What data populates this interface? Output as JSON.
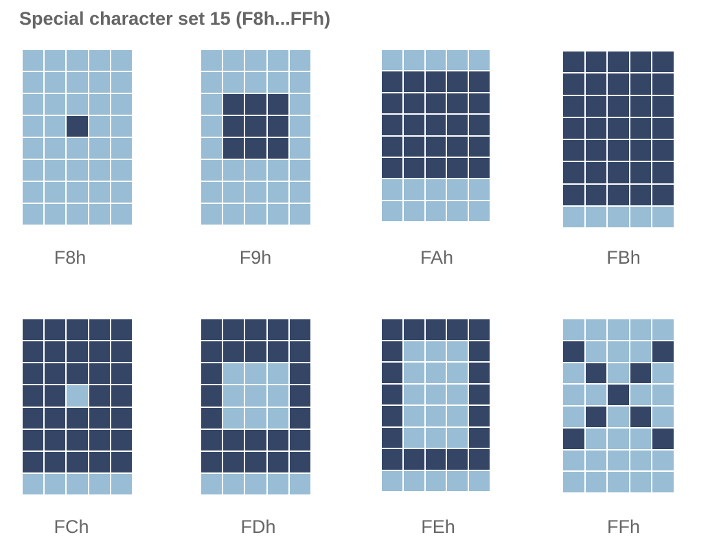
{
  "title": "Special character set 15 (F8h...FFh)",
  "colors": {
    "pixel_on": "#344566",
    "pixel_off": "#98bdd4",
    "grid_line": "#ffffff",
    "text": "#666666"
  },
  "grid": {
    "columns": 5,
    "rows": 8
  },
  "characters": [
    {
      "code": "F8h",
      "rows": [
        "00000",
        "00000",
        "00000",
        "00100",
        "00000",
        "00000",
        "00000",
        "00000"
      ]
    },
    {
      "code": "F9h",
      "rows": [
        "00000",
        "00000",
        "01110",
        "01110",
        "01110",
        "00000",
        "00000",
        "00000"
      ]
    },
    {
      "code": "FAh",
      "rows": [
        "00000",
        "11111",
        "11111",
        "11111",
        "11111",
        "11111",
        "00000",
        "00000"
      ]
    },
    {
      "code": "FBh",
      "rows": [
        "11111",
        "11111",
        "11111",
        "11111",
        "11111",
        "11111",
        "11111",
        "00000"
      ]
    },
    {
      "code": "FCh",
      "rows": [
        "11111",
        "11111",
        "11111",
        "11011",
        "11111",
        "11111",
        "11111",
        "00000"
      ]
    },
    {
      "code": "FDh",
      "rows": [
        "11111",
        "11111",
        "10001",
        "10001",
        "10001",
        "11111",
        "11111",
        "00000"
      ]
    },
    {
      "code": "FEh",
      "rows": [
        "11111",
        "10001",
        "10001",
        "10001",
        "10001",
        "10001",
        "11111",
        "00000"
      ]
    },
    {
      "code": "FFh",
      "rows": [
        "00000",
        "10001",
        "01010",
        "00100",
        "01010",
        "10001",
        "00000",
        "00000"
      ]
    }
  ]
}
